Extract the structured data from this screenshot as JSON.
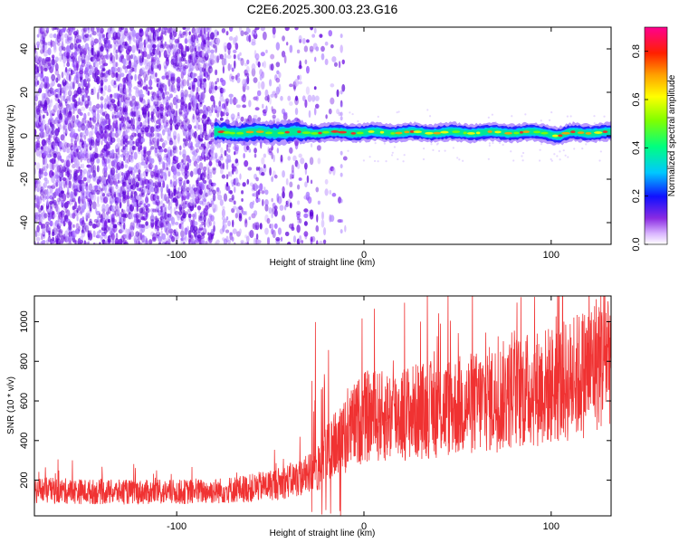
{
  "title": "C2E6.2025.300.03.23.G16",
  "chart_data": [
    {
      "type": "heatmap",
      "xlabel": "Height of straight line (km)",
      "ylabel": "Frequency (Hz)",
      "xlim": [
        -176,
        132
      ],
      "ylim": [
        -50,
        50
      ],
      "x_ticks": [
        -100,
        0,
        100
      ],
      "y_ticks": [
        -40,
        -20,
        0,
        20,
        40
      ],
      "colorbar": {
        "label": "Normalized spectral amplitude",
        "range": [
          0,
          0.9
        ],
        "ticks": [
          0.0,
          0.2,
          0.4,
          0.6,
          0.8
        ]
      },
      "ridge": {
        "x_start": -80,
        "x_end": 132,
        "center_frequency": 1.5,
        "dip_at_x": 104,
        "dip_frequency": 0
      },
      "noise_extent": {
        "dense_until_x": -80,
        "sparse_until_x": -12
      }
    },
    {
      "type": "line",
      "xlabel": "Height of straight line (km)",
      "ylabel": "SNR (10 * v/v)",
      "xlim": [
        -176,
        132
      ],
      "ylim": [
        20,
        1130
      ],
      "x_ticks": [
        -100,
        0,
        100
      ],
      "y_ticks": [
        200,
        400,
        600,
        800,
        1000
      ],
      "color": "#f03232",
      "series": [
        {
          "x": [
            -176,
            -160,
            -140,
            -120,
            -100,
            -80,
            -60,
            -45,
            -35,
            -25,
            -20,
            -15,
            -10,
            -5,
            0,
            10,
            20,
            40,
            60,
            80,
            100,
            110,
            120,
            132
          ],
          "y": [
            150,
            145,
            140,
            140,
            140,
            145,
            160,
            185,
            210,
            250,
            330,
            380,
            420,
            480,
            520,
            520,
            540,
            560,
            590,
            640,
            680,
            700,
            760,
            870
          ]
        }
      ]
    }
  ]
}
